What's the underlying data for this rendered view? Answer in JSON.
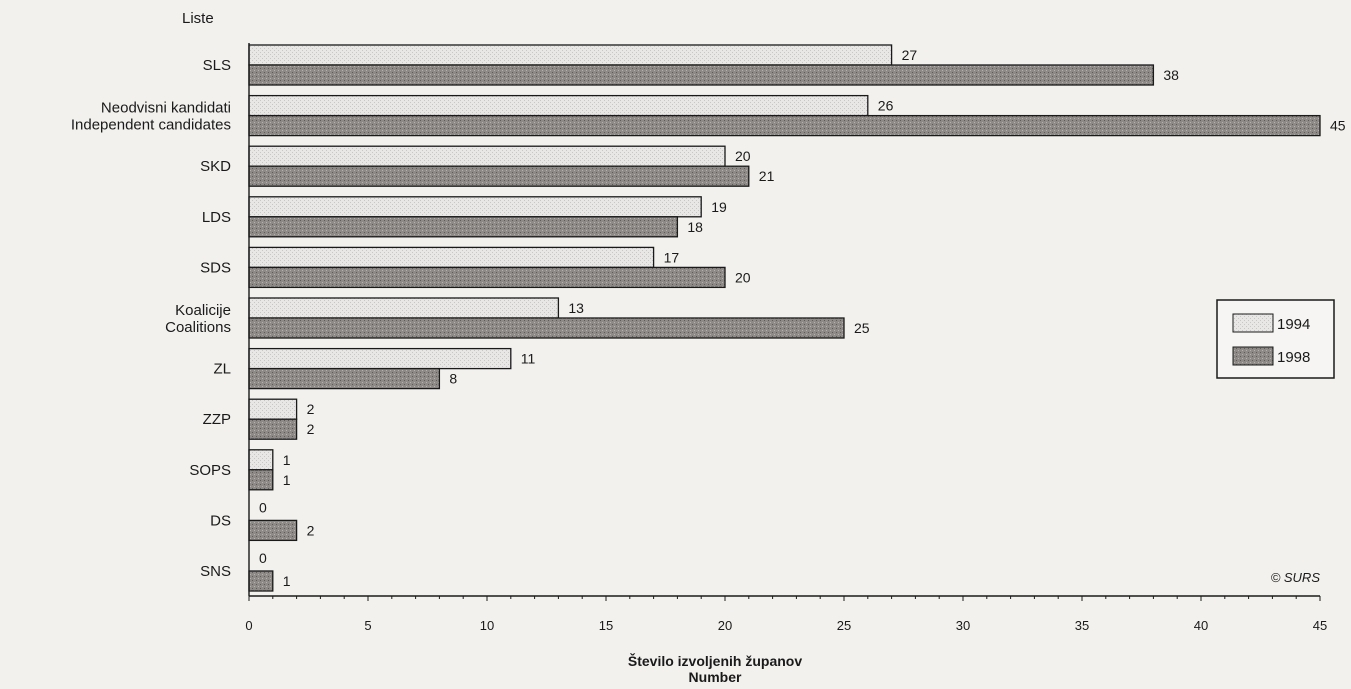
{
  "chart_data": {
    "type": "bar",
    "orientation": "horizontal",
    "yaxis_title": "Liste",
    "xlabel_line1": "Število izvoljenih županov",
    "xlabel_line2": "Number",
    "categories": [
      [
        "SLS"
      ],
      [
        "Neodvisni kandidati",
        "Independent candidates"
      ],
      [
        "SKD"
      ],
      [
        "LDS"
      ],
      [
        "SDS"
      ],
      [
        "Koalicije",
        "Coalitions"
      ],
      [
        "ZL"
      ],
      [
        "ZZP"
      ],
      [
        "SOPS"
      ],
      [
        "DS"
      ],
      [
        "SNS"
      ]
    ],
    "series": [
      {
        "name": "1994",
        "values": [
          27,
          26,
          20,
          19,
          17,
          13,
          11,
          2,
          1,
          0,
          0
        ],
        "color": "#e4e3e2"
      },
      {
        "name": "1998",
        "values": [
          38,
          45,
          21,
          18,
          20,
          25,
          8,
          2,
          1,
          2,
          1
        ],
        "color": "#8c8886"
      }
    ],
    "xlim": [
      0,
      45
    ],
    "xticks": [
      0,
      5,
      10,
      15,
      20,
      25,
      30,
      35,
      40,
      45
    ],
    "grid": false,
    "legend_position": "right",
    "data_labels": true,
    "credit": "© SURS"
  }
}
